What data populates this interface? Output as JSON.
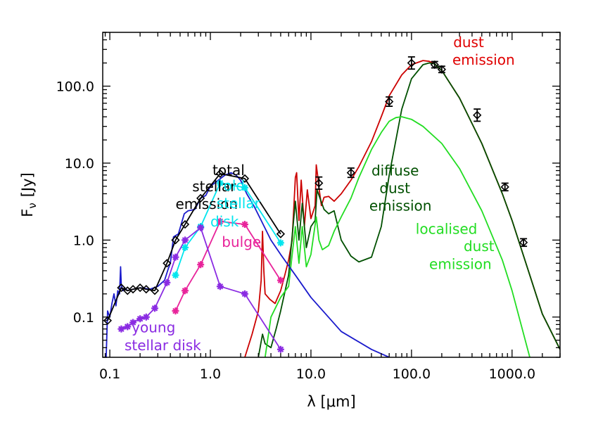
{
  "chart_data": {
    "type": "line",
    "xlabel": "λ [μm]",
    "ylabel": "F_ν [Jy]",
    "ylabel_main": "F",
    "ylabel_sub": "ν",
    "ylabel_unit": "[Jy]",
    "xscale": "log",
    "yscale": "log",
    "xlim": [
      0.085,
      3000
    ],
    "ylim": [
      0.03,
      500
    ],
    "x_ticks": [
      0.1,
      1.0,
      10.0,
      100.0,
      1000.0
    ],
    "x_tick_labels": [
      "0.1",
      "1.0",
      "10.0",
      "100.0",
      "1000.0"
    ],
    "y_ticks": [
      0.1,
      1.0,
      10.0,
      100.0
    ],
    "y_tick_labels": [
      "0.1",
      "1.0",
      "10.0",
      "100.0"
    ],
    "grid": false,
    "legend": "none",
    "annotations": [
      {
        "text": "total",
        "color": "#000000",
        "x": 1.05,
        "y": 7.0
      },
      {
        "text": "stellar",
        "color": "#000000",
        "x": 0.66,
        "y": 4.3
      },
      {
        "text": "emission",
        "color": "#000000",
        "x": 0.45,
        "y": 2.55
      },
      {
        "text": "old",
        "color": "#00e5ee",
        "x": 1.35,
        "y": 4.4
      },
      {
        "text": "stellar",
        "color": "#00e5ee",
        "x": 1.15,
        "y": 2.6
      },
      {
        "text": "disk",
        "color": "#00e5ee",
        "x": 1.0,
        "y": 1.5
      },
      {
        "text": "bulge",
        "color": "#e8239a",
        "x": 1.3,
        "y": 0.82
      },
      {
        "text": "young",
        "color": "#8a2be2",
        "x": 0.165,
        "y": 0.063
      },
      {
        "text": "stellar disk",
        "color": "#8a2be2",
        "x": 0.14,
        "y": 0.037
      },
      {
        "text": "dust",
        "color": "#e00000",
        "x": 260,
        "y": 320
      },
      {
        "text": "emission",
        "color": "#e00000",
        "x": 255,
        "y": 190
      },
      {
        "text": "diffuse",
        "color": "#005000",
        "x": 40,
        "y": 6.9
      },
      {
        "text": "dust",
        "color": "#005000",
        "x": 48,
        "y": 4.1
      },
      {
        "text": "emission",
        "color": "#005000",
        "x": 38,
        "y": 2.4
      },
      {
        "text": "localised",
        "color": "#22dd22",
        "x": 110,
        "y": 1.2
      },
      {
        "text": "dust",
        "color": "#22dd22",
        "x": 330,
        "y": 0.72
      },
      {
        "text": "emission",
        "color": "#22dd22",
        "x": 150,
        "y": 0.42
      }
    ],
    "series": [
      {
        "color": "#cc0000",
        "style": "line",
        "x": [
          2.2,
          2.6,
          3.0,
          3.2,
          3.3,
          3.4,
          3.5,
          3.9,
          4.4,
          5.0,
          5.5,
          6.0,
          6.5,
          7.0,
          7.2,
          7.6,
          8.0,
          8.6,
          9.2,
          10.0,
          11.0,
          11.3,
          11.6,
          12.0,
          12.7,
          13.5,
          15.0,
          17.0,
          20.0,
          25.0,
          30.0,
          40.0,
          50.0,
          60.0,
          80.0,
          100.0,
          130.0,
          150.0,
          170.0,
          200.0,
          300.0,
          500.0,
          800.0,
          1000.0,
          1500.0,
          2000.0,
          3000.0
        ],
        "y": [
          0.03,
          0.06,
          0.12,
          0.3,
          1.3,
          0.4,
          0.2,
          0.17,
          0.15,
          0.22,
          0.35,
          0.55,
          1.0,
          6.5,
          7.5,
          1.8,
          6.0,
          1.5,
          4.5,
          1.9,
          2.8,
          9.5,
          7.2,
          4.8,
          2.8,
          3.6,
          3.7,
          3.2,
          4.0,
          6.0,
          9.0,
          19.0,
          40.0,
          75.0,
          140.0,
          190.0,
          215.0,
          210.0,
          195.0,
          160.0,
          70.0,
          18.0,
          4.0,
          1.8,
          0.35,
          0.11,
          0.038
        ]
      },
      {
        "color": "#005000",
        "style": "line",
        "x": [
          3.0,
          3.3,
          3.5,
          4.0,
          4.5,
          5.0,
          6.0,
          7.0,
          7.6,
          8.2,
          9.0,
          10.0,
          11.0,
          11.5,
          12.3,
          13.5,
          15.0,
          17.0,
          20.0,
          25.0,
          30.0,
          40.0,
          50.0,
          60.0,
          80.0,
          100.0,
          130.0,
          150.0,
          170.0,
          200.0,
          300.0,
          500.0,
          800.0,
          1000.0,
          1500.0,
          2000.0,
          3000.0
        ],
        "y": [
          0.03,
          0.06,
          0.045,
          0.04,
          0.07,
          0.12,
          0.35,
          3.2,
          1.0,
          3.0,
          0.8,
          1.5,
          1.8,
          4.5,
          3.5,
          2.5,
          2.2,
          2.4,
          1.0,
          0.62,
          0.52,
          0.6,
          1.5,
          7.0,
          50.0,
          125.0,
          190.0,
          200.0,
          195.0,
          160.0,
          70.0,
          18.0,
          4.0,
          1.8,
          0.35,
          0.11,
          0.038
        ]
      },
      {
        "color": "#22dd22",
        "style": "line",
        "x": [
          3.5,
          4.0,
          5.0,
          6.0,
          7.0,
          7.6,
          8.2,
          9.0,
          10.0,
          11.3,
          12.0,
          13.0,
          15.0,
          17.0,
          20.0,
          25.0,
          30.0,
          40.0,
          50.0,
          60.0,
          70.0,
          80.0,
          100.0,
          130.0,
          200.0,
          300.0,
          500.0,
          800.0,
          1000.0,
          1500.0
        ],
        "y": [
          0.03,
          0.1,
          0.18,
          0.25,
          1.5,
          0.5,
          1.5,
          0.45,
          0.65,
          2.0,
          1.0,
          0.75,
          0.85,
          1.3,
          2.0,
          3.5,
          6.5,
          15.0,
          25.0,
          35.0,
          39.0,
          40.0,
          37.0,
          30.0,
          18.0,
          8.5,
          2.4,
          0.55,
          0.22,
          0.03
        ]
      },
      {
        "color": "#1a1acc",
        "style": "line",
        "x": [
          0.092,
          0.095,
          0.1,
          0.105,
          0.11,
          0.115,
          0.12,
          0.125,
          0.128,
          0.13,
          0.135,
          0.14,
          0.15,
          0.17,
          0.2,
          0.25,
          0.3,
          0.35,
          0.38,
          0.4,
          0.43,
          0.48,
          0.55,
          0.6,
          0.7,
          0.8,
          0.9,
          1.0,
          1.2,
          1.4,
          1.6,
          1.8,
          2.0,
          2.3,
          2.7,
          3.2,
          4.0,
          5.0,
          7.0,
          10.0,
          20.0,
          40.0,
          60.0
        ],
        "y": [
          0.03,
          0.12,
          0.1,
          0.15,
          0.2,
          0.14,
          0.22,
          0.2,
          0.45,
          0.26,
          0.22,
          0.24,
          0.22,
          0.23,
          0.24,
          0.23,
          0.25,
          0.3,
          0.42,
          0.5,
          1.1,
          1.2,
          2.2,
          2.4,
          2.5,
          3.5,
          3.8,
          5.0,
          6.0,
          7.0,
          7.5,
          7.0,
          6.0,
          4.0,
          2.8,
          1.8,
          1.0,
          0.65,
          0.35,
          0.18,
          0.065,
          0.038,
          0.03
        ]
      },
      {
        "color": "#000000",
        "style": "line-markers",
        "marker": "diamond",
        "x": [
          0.095,
          0.13,
          0.15,
          0.17,
          0.2,
          0.23,
          0.28,
          0.37,
          0.45,
          0.56,
          0.8,
          1.25,
          2.2,
          5.0
        ],
        "y": [
          0.09,
          0.24,
          0.22,
          0.23,
          0.24,
          0.23,
          0.22,
          0.5,
          1.0,
          1.6,
          3.5,
          7.3,
          6.3,
          1.2
        ]
      },
      {
        "color": "#00e5ee",
        "style": "line-markers",
        "marker": "asterisk",
        "x": [
          0.45,
          0.56,
          0.8,
          1.25,
          2.2,
          5.0
        ],
        "y": [
          0.35,
          0.8,
          1.5,
          5.5,
          4.8,
          0.92
        ]
      },
      {
        "color": "#e8239a",
        "style": "line-markers",
        "marker": "asterisk",
        "x": [
          0.45,
          0.56,
          0.8,
          1.25,
          2.2,
          5.0
        ],
        "y": [
          0.12,
          0.22,
          0.48,
          1.75,
          1.6,
          0.3
        ]
      },
      {
        "color": "#8a2be2",
        "style": "line-markers",
        "marker": "asterisk",
        "x": [
          0.13,
          0.15,
          0.17,
          0.2,
          0.23,
          0.28,
          0.37,
          0.45,
          0.56,
          0.8,
          1.25,
          2.2,
          5.0
        ],
        "y": [
          0.07,
          0.075,
          0.085,
          0.095,
          0.1,
          0.13,
          0.28,
          0.6,
          1.0,
          1.45,
          0.25,
          0.2,
          0.038
        ]
      },
      {
        "color": "#000000",
        "style": "points",
        "marker": "diamond-errorbar",
        "x": [
          12.0,
          25.0,
          60.0,
          100.0,
          170.0,
          200.0,
          450.0,
          850.0,
          1300.0
        ],
        "y": [
          5.5,
          7.5,
          63.0,
          200.0,
          190.0,
          165.0,
          42.0,
          4.9,
          0.93
        ],
        "yerr_factor": [
          1.2,
          1.15,
          1.15,
          1.2,
          1.1,
          1.1,
          1.2,
          1.12,
          1.12
        ]
      }
    ]
  }
}
